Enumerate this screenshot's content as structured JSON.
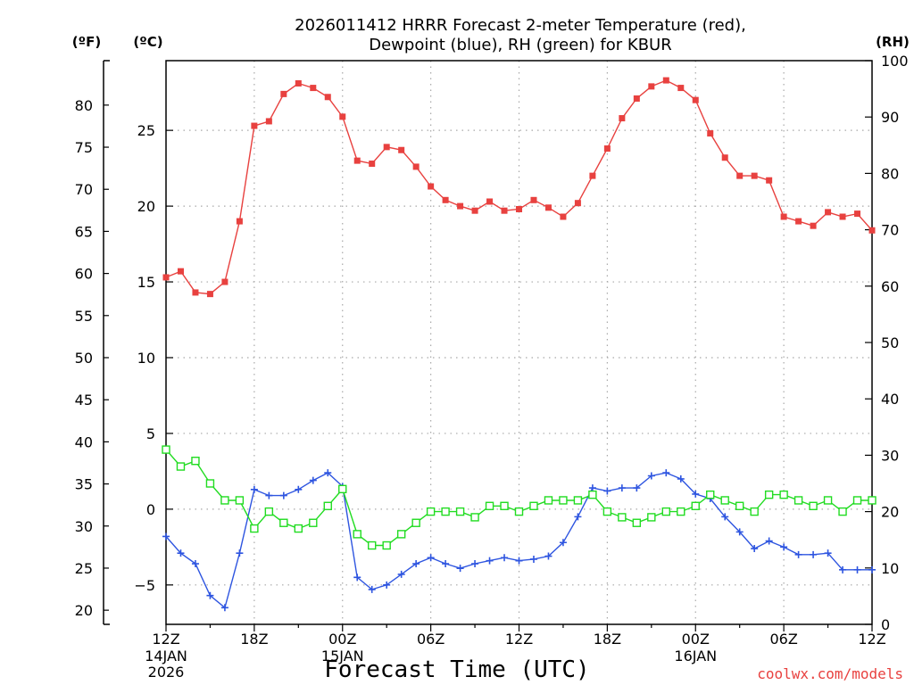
{
  "chart_data": {
    "type": "line",
    "title_lines": [
      "2026011412 HRRR Forecast 2-meter Temperature (red),",
      "Dewpoint (blue), RH (green) for KBUR"
    ],
    "x_axis": {
      "label": "Forecast Time (UTC)",
      "range_hours": [
        0,
        48
      ],
      "ticks": [
        {
          "hour": 0,
          "label": "12Z",
          "sub": [
            "14JAN",
            "2026"
          ]
        },
        {
          "hour": 6,
          "label": "18Z",
          "sub": []
        },
        {
          "hour": 12,
          "label": "00Z",
          "sub": [
            "15JAN"
          ]
        },
        {
          "hour": 18,
          "label": "06Z",
          "sub": []
        },
        {
          "hour": 24,
          "label": "12Z",
          "sub": []
        },
        {
          "hour": 30,
          "label": "18Z",
          "sub": []
        },
        {
          "hour": 36,
          "label": "00Z",
          "sub": [
            "16JAN"
          ]
        },
        {
          "hour": 42,
          "label": "06Z",
          "sub": []
        },
        {
          "hour": 48,
          "label": "12Z",
          "sub": []
        }
      ]
    },
    "y_axis_c": {
      "unit": "(ºC)",
      "range": [
        -7.6,
        29.6
      ],
      "ticks": [
        -5,
        0,
        5,
        10,
        15,
        20,
        25
      ]
    },
    "y_axis_f": {
      "unit": "(ºF)",
      "ticks": [
        20,
        25,
        30,
        35,
        40,
        45,
        50,
        55,
        60,
        65,
        70,
        75,
        80
      ]
    },
    "y_axis_rh": {
      "unit": "(RH)",
      "range": [
        0,
        100
      ],
      "ticks": [
        0,
        10,
        20,
        30,
        40,
        50,
        60,
        70,
        80,
        90,
        100
      ]
    },
    "grid": true,
    "series": [
      {
        "name": "Temperature (red)",
        "axis": "c",
        "color": "#e8413f",
        "marker": "square-filled",
        "values": [
          15.3,
          15.7,
          14.3,
          14.2,
          15.0,
          19.0,
          25.3,
          25.6,
          27.4,
          28.1,
          27.8,
          27.2,
          25.9,
          23.0,
          22.8,
          23.9,
          23.7,
          22.6,
          21.3,
          20.4,
          20.0,
          19.7,
          20.3,
          19.7,
          19.8,
          20.4,
          19.9,
          19.3,
          20.2,
          22.0,
          23.8,
          25.8,
          27.1,
          27.9,
          28.3,
          27.8,
          27.0,
          24.8,
          23.2,
          22.0,
          22.0,
          21.7,
          19.3,
          19.0,
          18.7,
          19.6,
          19.3,
          19.5,
          18.4
        ]
      },
      {
        "name": "Dewpoint (blue)",
        "axis": "c",
        "color": "#2e55e0",
        "marker": "plus",
        "values": [
          -1.8,
          -2.9,
          -3.6,
          -5.7,
          -6.5,
          -2.9,
          1.3,
          0.9,
          0.9,
          1.3,
          1.9,
          2.4,
          1.5,
          -4.5,
          -5.3,
          -5.0,
          -4.3,
          -3.6,
          -3.2,
          -3.6,
          -3.9,
          -3.6,
          -3.4,
          -3.2,
          -3.4,
          -3.3,
          -3.1,
          -2.2,
          -0.5,
          1.4,
          1.2,
          1.4,
          1.4,
          2.2,
          2.4,
          2.0,
          1.0,
          0.7,
          -0.5,
          -1.5,
          -2.6,
          -2.1,
          -2.5,
          -3.0,
          -3.0,
          -2.9,
          -4.0,
          -4.0,
          -4.0
        ]
      },
      {
        "name": "RH (green)",
        "axis": "rh",
        "color": "#21dc21",
        "marker": "square-open",
        "values": [
          31,
          28,
          29,
          25,
          22,
          22,
          17,
          20,
          18,
          17,
          18,
          21,
          24,
          16,
          14,
          14,
          16,
          18,
          20,
          20,
          20,
          19,
          21,
          21,
          20,
          21,
          22,
          22,
          22,
          23,
          20,
          19,
          18,
          19,
          20,
          20,
          21,
          23,
          22,
          21,
          20,
          23,
          23,
          22,
          21,
          22,
          20,
          22,
          22
        ]
      }
    ]
  },
  "credit": "coolwx.com/models"
}
